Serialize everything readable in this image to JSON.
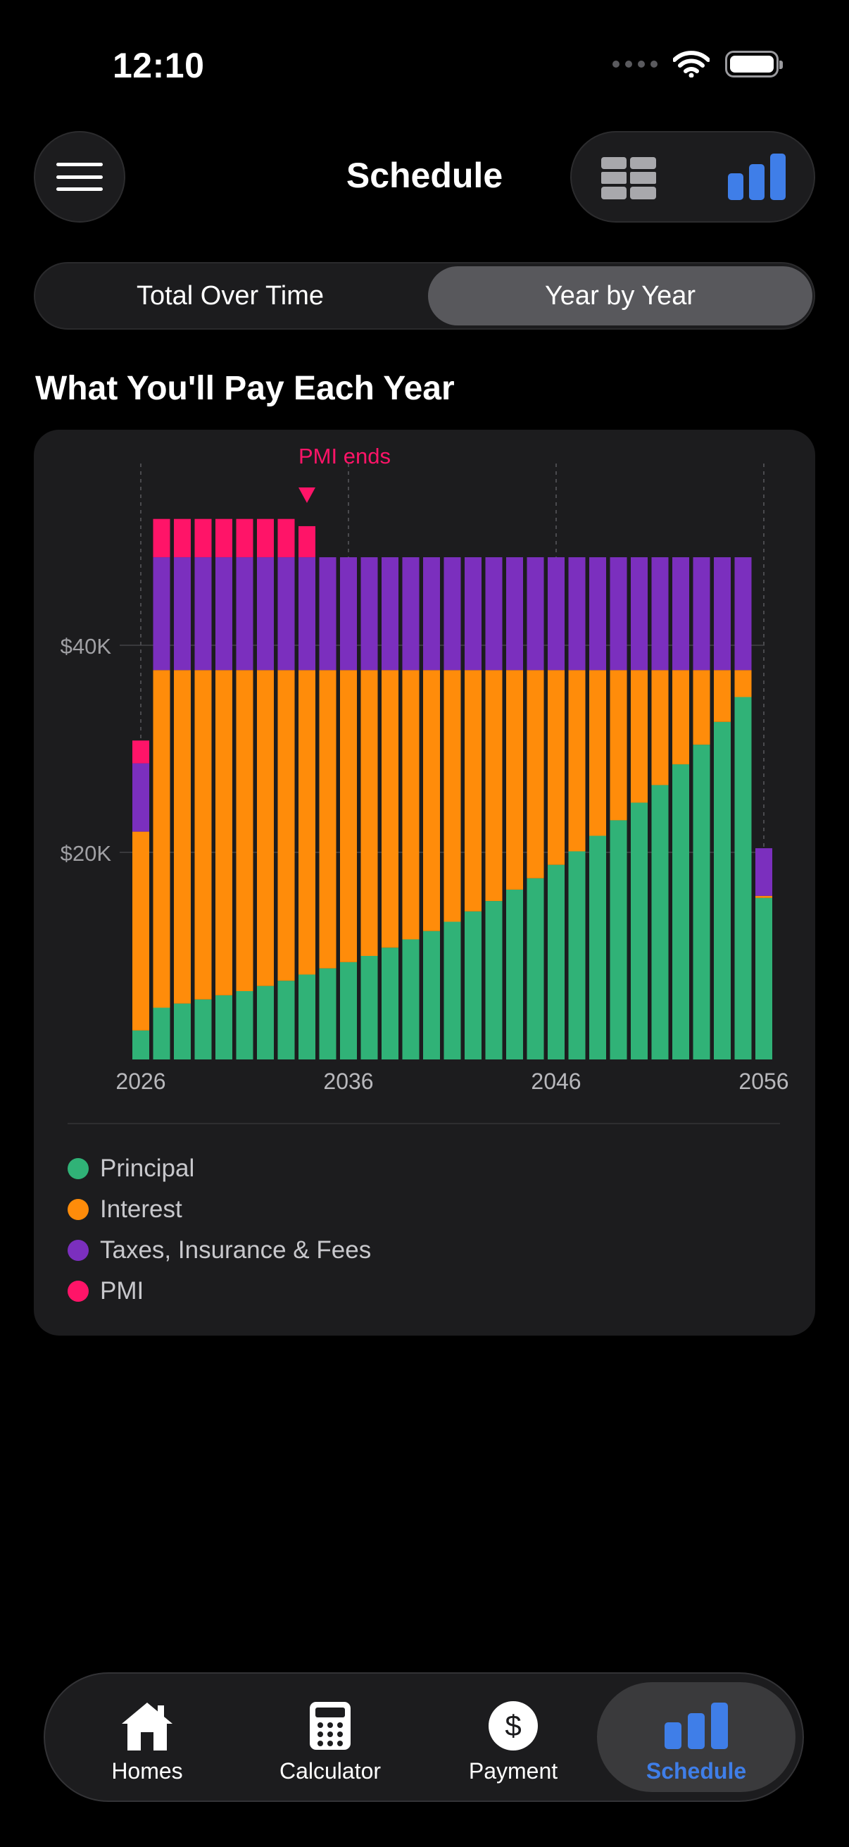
{
  "status_bar": {
    "time": "12:10"
  },
  "header": {
    "title": "Schedule",
    "view_options": [
      "table-view",
      "chart-view"
    ],
    "active_view": "chart-view"
  },
  "segmented": {
    "left_label": "Total Over Time",
    "right_label": "Year by Year",
    "selected": "Year by Year"
  },
  "section": {
    "title": "What You'll Pay Each Year"
  },
  "chart_data": {
    "type": "bar",
    "stacked": true,
    "title": "",
    "xlabel": "",
    "ylabel": "",
    "x": [
      2026,
      2027,
      2028,
      2029,
      2030,
      2031,
      2032,
      2033,
      2034,
      2035,
      2036,
      2037,
      2038,
      2039,
      2040,
      2041,
      2042,
      2043,
      2044,
      2045,
      2046,
      2047,
      2048,
      2049,
      2050,
      2051,
      2052,
      2053,
      2054,
      2055,
      2056
    ],
    "x_tick_labels": [
      "2026",
      "2036",
      "2046",
      "2056"
    ],
    "y_tick_labels": [
      "$20K",
      "$40K"
    ],
    "y_ticks": [
      20000,
      40000
    ],
    "ylim": [
      0,
      58000
    ],
    "series": [
      {
        "name": "Principal",
        "color": "#30b277",
        "values": [
          2800,
          5000,
          5400,
          5800,
          6200,
          6600,
          7100,
          7600,
          8200,
          8800,
          9400,
          10000,
          10800,
          11600,
          12400,
          13300,
          14300,
          15300,
          16400,
          17500,
          18800,
          20100,
          21600,
          23100,
          24800,
          26500,
          28500,
          30400,
          32600,
          35000,
          15600
        ]
      },
      {
        "name": "Interest",
        "color": "#ff8c0a",
        "values": [
          19200,
          32600,
          32200,
          31800,
          31400,
          31000,
          30500,
          30000,
          29400,
          28800,
          28200,
          27600,
          26800,
          26000,
          25200,
          24300,
          23300,
          22300,
          21200,
          20100,
          18800,
          17500,
          16000,
          14500,
          12800,
          11100,
          9100,
          7200,
          5000,
          2600,
          200
        ]
      },
      {
        "name": "Taxes, Insurance & Fees",
        "color": "#7b2fbe",
        "values": [
          6600,
          10900,
          10900,
          10900,
          10900,
          10900,
          10900,
          10900,
          10900,
          10900,
          10900,
          10900,
          10900,
          10900,
          10900,
          10900,
          10900,
          10900,
          10900,
          10900,
          10900,
          10900,
          10900,
          10900,
          10900,
          10900,
          10900,
          10900,
          10900,
          10900,
          4600
        ]
      },
      {
        "name": "PMI",
        "color": "#ff1468",
        "values": [
          2200,
          3700,
          3700,
          3700,
          3700,
          3700,
          3700,
          3700,
          3000,
          0,
          0,
          0,
          0,
          0,
          0,
          0,
          0,
          0,
          0,
          0,
          0,
          0,
          0,
          0,
          0,
          0,
          0,
          0,
          0,
          0,
          0
        ]
      }
    ],
    "annotation": {
      "text": "PMI ends",
      "x": 2034
    }
  },
  "tabbar": {
    "items": [
      {
        "label": "Homes",
        "icon": "house-icon"
      },
      {
        "label": "Calculator",
        "icon": "calculator-icon"
      },
      {
        "label": "Payment",
        "icon": "dollar-circle-icon"
      },
      {
        "label": "Schedule",
        "icon": "bar-chart-icon"
      }
    ],
    "active": "Schedule"
  },
  "colors": {
    "accent": "#3f7ee8",
    "annotation": "#ff1468"
  }
}
